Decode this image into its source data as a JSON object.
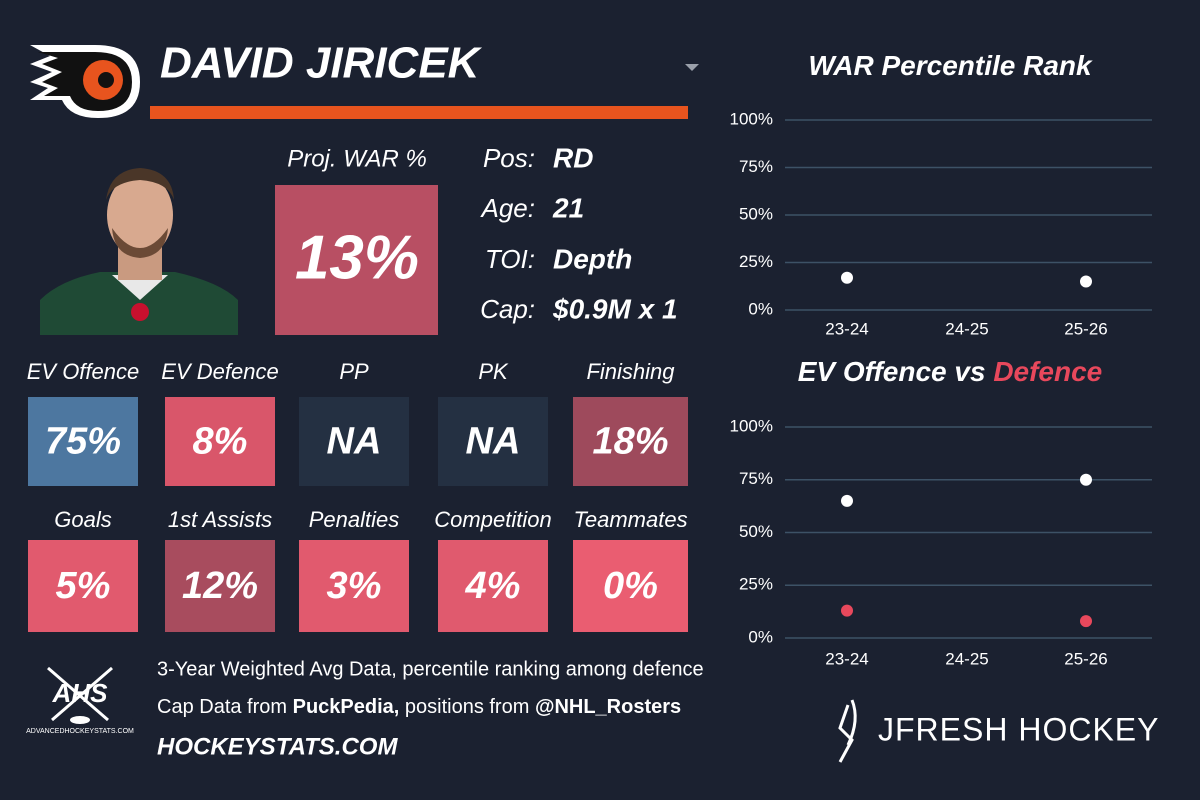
{
  "header": {
    "name": "DAVID JIRICEK"
  },
  "proj_war": {
    "label": "Proj. WAR %",
    "value": "13%",
    "color": "#b84f63"
  },
  "info": [
    {
      "label": "Pos:",
      "value": "RD"
    },
    {
      "label": "Age:",
      "value": "21"
    },
    {
      "label": "TOI:",
      "value": "Depth"
    },
    {
      "label": "Cap:",
      "value": "$0.9M x 1"
    }
  ],
  "tiles": [
    {
      "label": "EV Offence",
      "value": "75%",
      "color": "#4d77a0"
    },
    {
      "label": "EV Defence",
      "value": "8%",
      "color": "#d9566a"
    },
    {
      "label": "PP",
      "value": "NA",
      "color": "#243042"
    },
    {
      "label": "PK",
      "value": "NA",
      "color": "#243042"
    },
    {
      "label": "Finishing",
      "value": "18%",
      "color": "#9e4a5c"
    },
    {
      "label": "Goals",
      "value": "5%",
      "color": "#e15a6e"
    },
    {
      "label": "1st Assists",
      "value": "12%",
      "color": "#a84c5e"
    },
    {
      "label": "Penalties",
      "value": "3%",
      "color": "#e15a6e"
    },
    {
      "label": "Competition",
      "value": "4%",
      "color": "#e05a6e"
    },
    {
      "label": "Teammates",
      "value": "0%",
      "color": "#ea5d71"
    }
  ],
  "footer": {
    "line1": "3-Year Weighted Avg Data, percentile ranking among defence",
    "line2a": "Cap Data from ",
    "line2b": "PuckPedia,",
    "line2c": " positions from ",
    "line2d": "@NHL_Rosters",
    "site": "HOCKEYSTATS.COM",
    "logo": "AHS",
    "logo_site": "ADVANCEDHOCKEYSTATS.COM",
    "brand": "JFRESH HOCKEY"
  },
  "chart_data": [
    {
      "type": "scatter",
      "title": "WAR Percentile Rank",
      "categories": [
        "23-24",
        "24-25",
        "25-26"
      ],
      "series": [
        {
          "color": "#ffffff",
          "values": [
            17,
            null,
            15
          ]
        }
      ],
      "ylim": [
        0,
        100
      ],
      "yticks": [
        {
          "value": 0,
          "label": "0%"
        },
        {
          "value": 25,
          "label": "25%"
        },
        {
          "value": 50,
          "label": "50%"
        },
        {
          "value": 75,
          "label": "75%"
        },
        {
          "value": 100,
          "label": "100%"
        }
      ],
      "grid": true
    },
    {
      "type": "scatter",
      "title": "EV Offence vs ",
      "title_highlight": "Defence",
      "title_highlight_color": "#e8485c",
      "categories": [
        "23-24",
        "24-25",
        "25-26"
      ],
      "series": [
        {
          "color": "#ffffff",
          "values": [
            65,
            null,
            75
          ]
        },
        {
          "color": "#e8485c",
          "values": [
            13,
            null,
            8
          ]
        }
      ],
      "ylim": [
        0,
        100
      ],
      "yticks": [
        {
          "value": 0,
          "label": "0%"
        },
        {
          "value": 25,
          "label": "25%"
        },
        {
          "value": 50,
          "label": "50%"
        },
        {
          "value": 75,
          "label": "75%"
        },
        {
          "value": 100,
          "label": "100%"
        }
      ],
      "grid": true
    }
  ]
}
